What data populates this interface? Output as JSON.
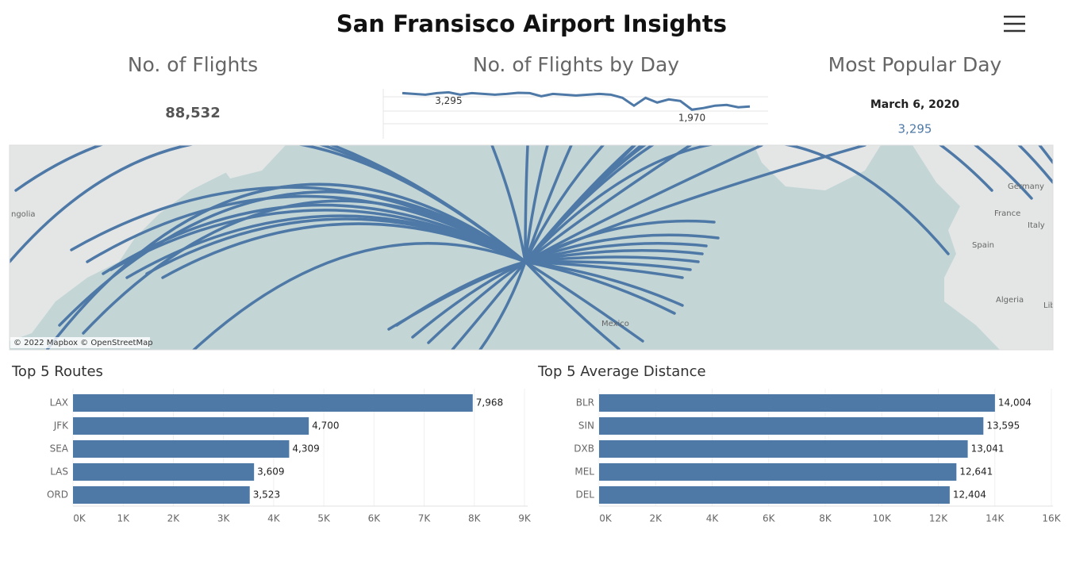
{
  "title": "San Fransisco Airport Insights",
  "flights": {
    "title": "No. of Flights",
    "value": 88532,
    "value_label": "88,532"
  },
  "popular_day": {
    "title": "Most Popular Day",
    "date": "March 6, 2020",
    "value": 3295,
    "value_label": "3,295"
  },
  "map": {
    "attribution": "© 2022 Mapbox © OpenStreetMap",
    "labels": [
      "ngolia",
      "Germany",
      "France",
      "Italy",
      "Spain",
      "Algeria",
      "Lib",
      "Mexico"
    ]
  },
  "chart_data": [
    {
      "type": "line",
      "title": "No. of Flights by Day",
      "color": "#4e79a7",
      "ylim": [
        1500,
        3500
      ],
      "values": [
        3235,
        3175,
        3115,
        3235,
        3295,
        3115,
        3235,
        3175,
        3115,
        3175,
        3260,
        3235,
        2995,
        3175,
        3115,
        3055,
        3115,
        3175,
        3115,
        2875,
        2275,
        2875,
        2515,
        2755,
        2635,
        1970,
        2095,
        2275,
        2335,
        2155,
        2215
      ],
      "value_labels": [
        null,
        null,
        null,
        null,
        "3,295",
        null,
        null,
        null,
        null,
        null,
        null,
        null,
        null,
        null,
        null,
        null,
        null,
        null,
        null,
        null,
        null,
        null,
        null,
        null,
        null,
        "1,970",
        null,
        null,
        null,
        null,
        null
      ]
    },
    {
      "type": "bar",
      "orientation": "horizontal",
      "title": "Top 5 Routes",
      "color": "#4e79a7",
      "categories": [
        "LAX",
        "JFK",
        "SEA",
        "LAS",
        "ORD"
      ],
      "values": [
        7968,
        4700,
        4309,
        3609,
        3523
      ],
      "value_labels": [
        "7,968",
        "4,700",
        "4,309",
        "3,609",
        "3,523"
      ],
      "xlim": [
        0,
        9000
      ],
      "xticks": [
        {
          "value": 0,
          "label": "0K"
        },
        {
          "value": 1000,
          "label": "1K"
        },
        {
          "value": 2000,
          "label": "2K"
        },
        {
          "value": 3000,
          "label": "3K"
        },
        {
          "value": 4000,
          "label": "4K"
        },
        {
          "value": 5000,
          "label": "5K"
        },
        {
          "value": 6000,
          "label": "6K"
        },
        {
          "value": 7000,
          "label": "7K"
        },
        {
          "value": 8000,
          "label": "8K"
        },
        {
          "value": 9000,
          "label": "9K"
        }
      ],
      "grid": true
    },
    {
      "type": "bar",
      "orientation": "horizontal",
      "title": "Top 5 Average Distance",
      "color": "#4e79a7",
      "categories": [
        "BLR",
        "SIN",
        "DXB",
        "MEL",
        "DEL"
      ],
      "values": [
        14004,
        13595,
        13041,
        12641,
        12404
      ],
      "value_labels": [
        "14,004",
        "13,595",
        "13,041",
        "12,641",
        "12,404"
      ],
      "xlim": [
        0,
        16000
      ],
      "xticks": [
        {
          "value": 0,
          "label": "0K"
        },
        {
          "value": 2000,
          "label": "2K"
        },
        {
          "value": 4000,
          "label": "4K"
        },
        {
          "value": 6000,
          "label": "6K"
        },
        {
          "value": 8000,
          "label": "8K"
        },
        {
          "value": 10000,
          "label": "10K"
        },
        {
          "value": 12000,
          "label": "12K"
        },
        {
          "value": 14000,
          "label": "14K"
        },
        {
          "value": 16000,
          "label": "16K"
        }
      ],
      "grid": true
    }
  ]
}
